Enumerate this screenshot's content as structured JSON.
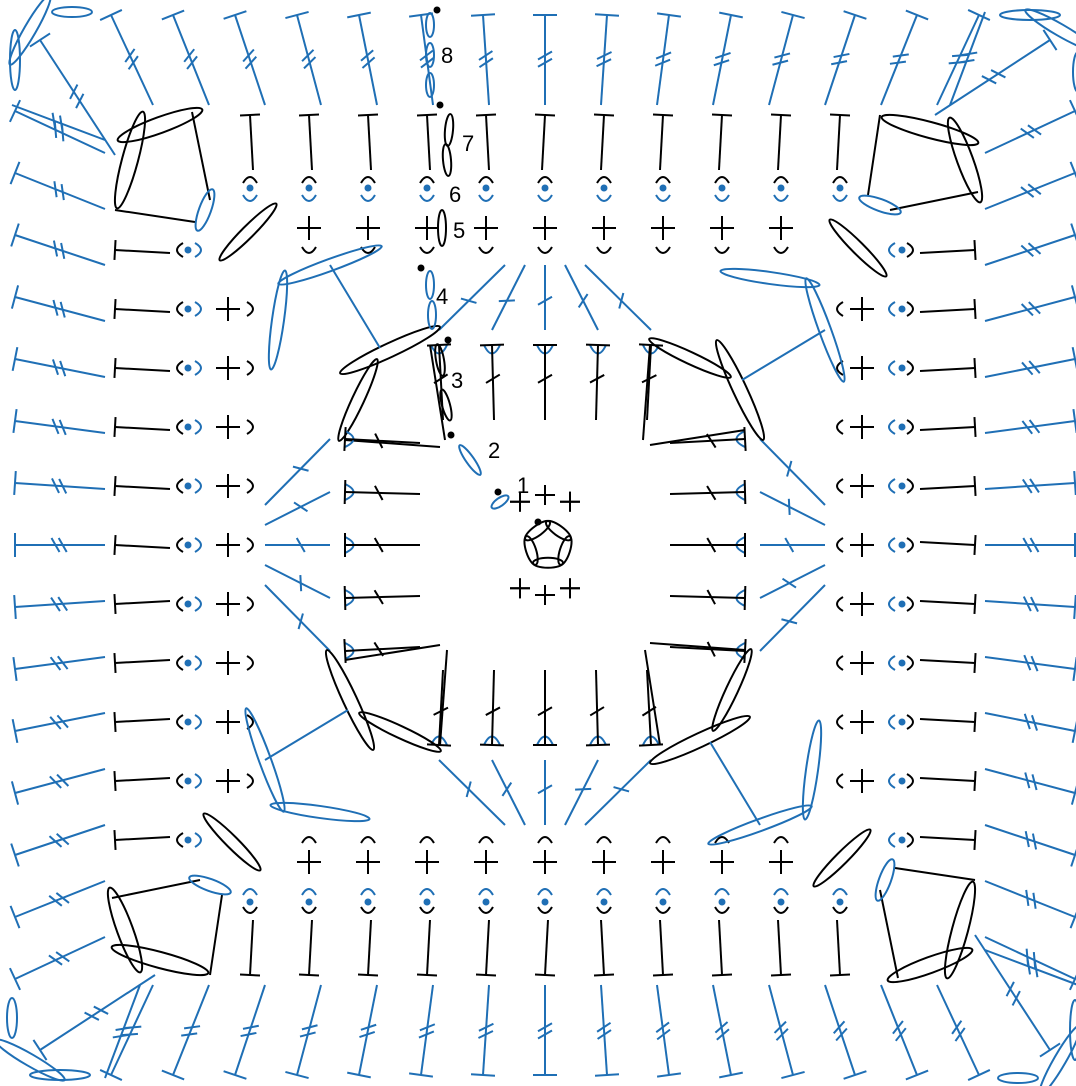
{
  "row_labels": [
    "1",
    "2",
    "3",
    "4",
    "5",
    "6",
    "7",
    "8"
  ]
}
